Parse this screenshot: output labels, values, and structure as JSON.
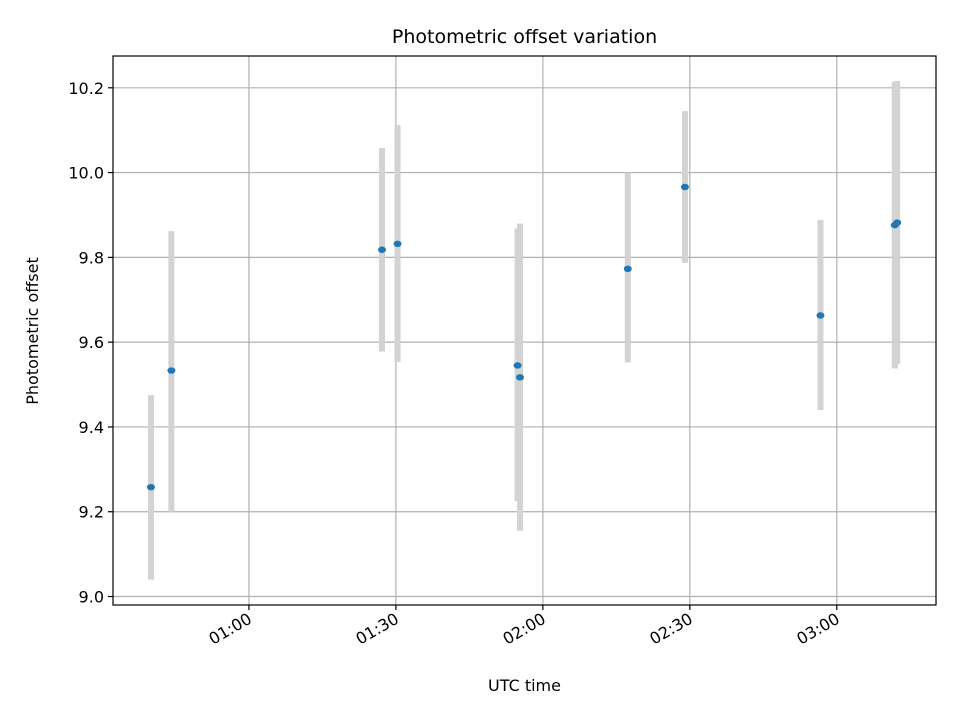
{
  "chart_data": {
    "type": "scatter",
    "title": "Photometric offset variation",
    "xlabel": "UTC time",
    "ylabel": "Photometric offset",
    "x_ticks": [
      "01:00",
      "01:30",
      "02:00",
      "02:30",
      "03:00"
    ],
    "y_ticks": [
      "9.0",
      "9.2",
      "9.4",
      "9.6",
      "9.8",
      "10.0",
      "10.2"
    ],
    "xlim": [
      "00:32:15",
      "03:20:15"
    ],
    "ylim": [
      8.98,
      10.275
    ],
    "grid": true,
    "point_color": "#1f77b4",
    "errorbar_color": "#d3d3d3",
    "points": [
      {
        "x": "00:40:00",
        "y": 9.258,
        "ylow": 9.04,
        "yhigh": 9.475
      },
      {
        "x": "00:44:10",
        "y": 9.533,
        "ylow": 9.2,
        "yhigh": 9.862
      },
      {
        "x": "01:27:10",
        "y": 9.818,
        "ylow": 9.578,
        "yhigh": 10.058
      },
      {
        "x": "01:30:20",
        "y": 9.832,
        "ylow": 9.553,
        "yhigh": 10.112
      },
      {
        "x": "01:54:50",
        "y": 9.545,
        "ylow": 9.225,
        "yhigh": 9.868
      },
      {
        "x": "01:55:20",
        "y": 9.517,
        "ylow": 9.155,
        "yhigh": 9.88
      },
      {
        "x": "02:17:20",
        "y": 9.773,
        "ylow": 9.552,
        "yhigh": 10.0
      },
      {
        "x": "02:29:00",
        "y": 9.966,
        "ylow": 9.787,
        "yhigh": 10.145
      },
      {
        "x": "02:56:40",
        "y": 9.663,
        "ylow": 9.44,
        "yhigh": 9.888
      },
      {
        "x": "03:11:50",
        "y": 9.876,
        "ylow": 9.538,
        "yhigh": 10.214
      },
      {
        "x": "03:12:20",
        "y": 9.882,
        "ylow": 9.548,
        "yhigh": 10.216
      }
    ]
  }
}
